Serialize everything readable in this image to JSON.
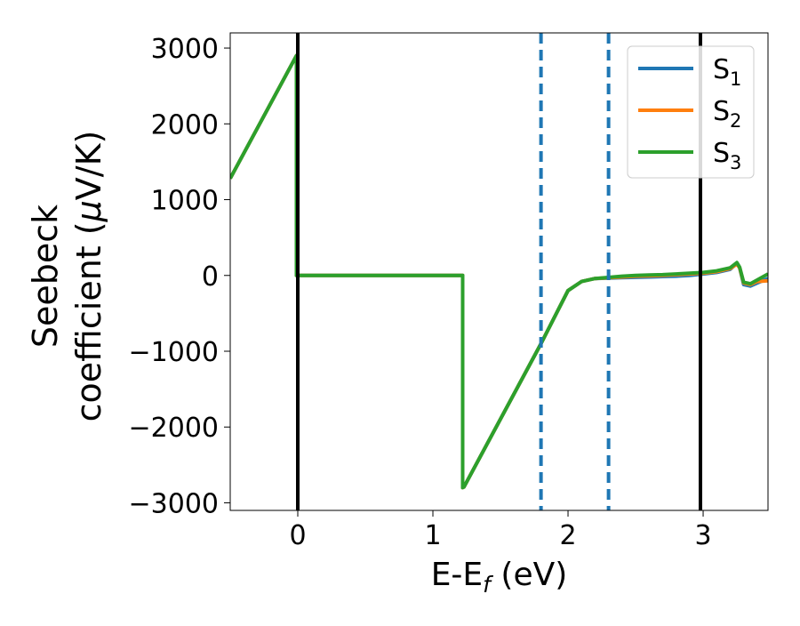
{
  "chart_data": {
    "type": "line",
    "xlabel_main": "E-E",
    "xlabel_sub": "f",
    "xlabel_unit": " (eV)",
    "ylabel_line1": "Seebeck",
    "ylabel_line2_prefix": "coefficient  (",
    "ylabel_mu": "μ",
    "ylabel_line2_suffix": "V/K)",
    "xlim": [
      -0.5,
      3.48
    ],
    "ylim": [
      -3100,
      3200
    ],
    "xticks": [
      0,
      1,
      2,
      3
    ],
    "xtick_labels": [
      "0",
      "1",
      "2",
      "3"
    ],
    "yticks": [
      3000,
      2000,
      1000,
      0,
      -1000,
      -2000,
      -3000
    ],
    "ytick_labels": [
      "3000",
      "2000",
      "1000",
      "0",
      "−1000",
      "−2000",
      "−3000"
    ],
    "vlines_solid": [
      0.0,
      2.98
    ],
    "vlines_dashed": [
      1.8,
      2.3
    ],
    "grid": false,
    "legend_position": "top-right",
    "series": [
      {
        "name": "S",
        "sub": "1",
        "color": "#1f77b4",
        "x": [
          -0.5,
          -0.01,
          -0.01,
          0.0,
          1.22,
          1.22,
          1.23,
          1.8,
          2.0,
          2.1,
          2.2,
          2.4,
          2.5,
          2.6,
          2.7,
          2.8,
          2.9,
          3.0,
          3.1,
          3.2,
          3.25,
          3.27,
          3.3,
          3.35,
          3.4,
          3.48
        ],
        "y": [
          1280,
          2900,
          0,
          0,
          0,
          -2800,
          -2790,
          -900,
          -200,
          -80,
          -40,
          -30,
          -25,
          -20,
          -15,
          -10,
          0,
          20,
          40,
          80,
          160,
          100,
          -120,
          -140,
          -100,
          -40
        ]
      },
      {
        "name": "S",
        "sub": "2",
        "color": "#ff7f0e",
        "x": [
          -0.5,
          -0.01,
          -0.01,
          0.0,
          1.22,
          1.22,
          1.23,
          1.8,
          2.0,
          2.1,
          2.2,
          2.4,
          2.5,
          2.6,
          2.7,
          2.8,
          2.9,
          3.0,
          3.1,
          3.2,
          3.25,
          3.27,
          3.3,
          3.35,
          3.4,
          3.48
        ],
        "y": [
          1280,
          2900,
          0,
          0,
          0,
          -2800,
          -2790,
          -900,
          -200,
          -80,
          -40,
          -20,
          -10,
          -5,
          0,
          10,
          20,
          30,
          50,
          90,
          150,
          100,
          -100,
          -120,
          -80,
          -70
        ]
      },
      {
        "name": "S",
        "sub": "3",
        "color": "#2ca02c",
        "x": [
          -0.5,
          -0.01,
          -0.01,
          0.0,
          1.22,
          1.22,
          1.23,
          1.8,
          2.0,
          2.1,
          2.2,
          2.4,
          2.5,
          2.6,
          2.7,
          2.8,
          2.9,
          3.0,
          3.1,
          3.2,
          3.25,
          3.27,
          3.3,
          3.35,
          3.4,
          3.48
        ],
        "y": [
          1280,
          2900,
          0,
          0,
          0,
          -2800,
          -2790,
          -900,
          -200,
          -80,
          -40,
          -10,
          0,
          5,
          10,
          20,
          30,
          40,
          60,
          100,
          170,
          110,
          -90,
          -110,
          -60,
          20
        ]
      }
    ]
  }
}
